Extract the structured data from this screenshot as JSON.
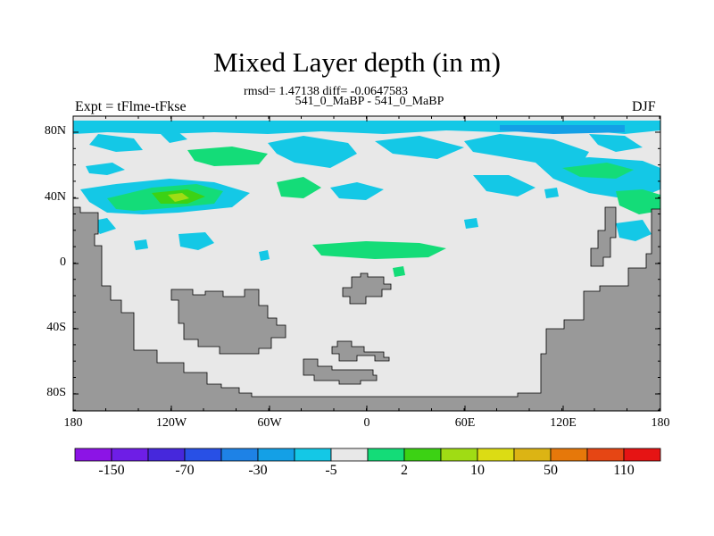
{
  "title": "Mixed Layer depth (in m)",
  "stats_line": "rmsd= 1.47138 diff= -0.0647583",
  "cases_line": "541_0_MaBP - 541_0_MaBP",
  "experiment_label": "Expt = tFlme-tFkse",
  "season_label": "DJF",
  "map": {
    "lat_ticks": [
      "80N",
      "40N",
      "0",
      "40S",
      "80S"
    ],
    "lon_ticks": [
      "180",
      "120W",
      "60W",
      "0",
      "60E",
      "120E",
      "180"
    ],
    "land_color": "#999999",
    "ocean_color": "#e8e8e8"
  },
  "colorbar": {
    "colors": [
      "#8c14e6",
      "#6e1ee6",
      "#4628dc",
      "#2850e6",
      "#1e82e6",
      "#14a0e6",
      "#14c8e6",
      "#e8e8e8",
      "#14dc78",
      "#3cd214",
      "#a0dc14",
      "#dcdc14",
      "#dcb414",
      "#e6780a",
      "#e64614",
      "#e61414"
    ],
    "labels": [
      "-150",
      "-70",
      "-30",
      "-5",
      "2",
      "10",
      "50",
      "110"
    ]
  }
}
